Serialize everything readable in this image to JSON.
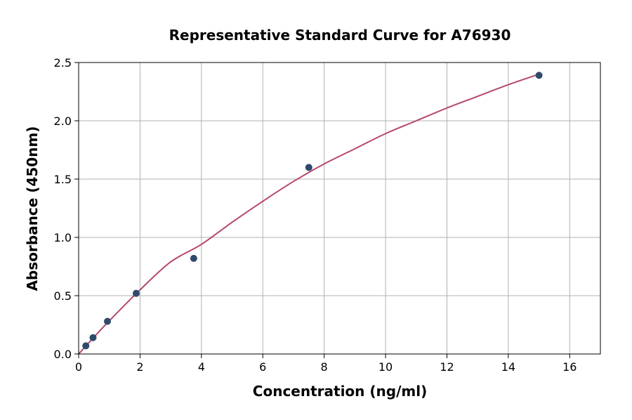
{
  "chart_data": {
    "type": "scatter",
    "title": "Representative Standard Curve for A76930",
    "xlabel": "Concentration (ng/ml)",
    "ylabel": "Absorbance (450nm)",
    "xlim": [
      0,
      17
    ],
    "ylim": [
      0,
      2.5
    ],
    "x_ticks": [
      0,
      2,
      4,
      6,
      8,
      10,
      12,
      14,
      16
    ],
    "y_ticks": [
      0.0,
      0.5,
      1.0,
      1.5,
      2.0,
      2.5
    ],
    "x_tick_labels": [
      "0",
      "2",
      "4",
      "6",
      "8",
      "10",
      "12",
      "14",
      "16"
    ],
    "y_tick_labels": [
      "0.0",
      "0.5",
      "1.0",
      "1.5",
      "2.0",
      "2.5"
    ],
    "grid": true,
    "legend": "none",
    "series": [
      {
        "kind": "points",
        "color": "#2e4a6b",
        "x": [
          0.234,
          0.469,
          0.938,
          1.875,
          3.75,
          7.5,
          15
        ],
        "y": [
          0.07,
          0.14,
          0.28,
          0.52,
          0.82,
          1.6,
          2.39
        ]
      },
      {
        "kind": "fit-curve",
        "color": "#b5476b",
        "x": [
          0,
          0.5,
          1,
          2,
          3,
          4,
          5,
          6,
          7,
          8,
          9,
          10,
          11,
          12,
          13,
          14,
          15
        ],
        "y": [
          0.0,
          0.145,
          0.285,
          0.55,
          0.79,
          0.94,
          1.13,
          1.31,
          1.48,
          1.63,
          1.76,
          1.89,
          2.0,
          2.11,
          2.21,
          2.31,
          2.4
        ]
      }
    ]
  }
}
